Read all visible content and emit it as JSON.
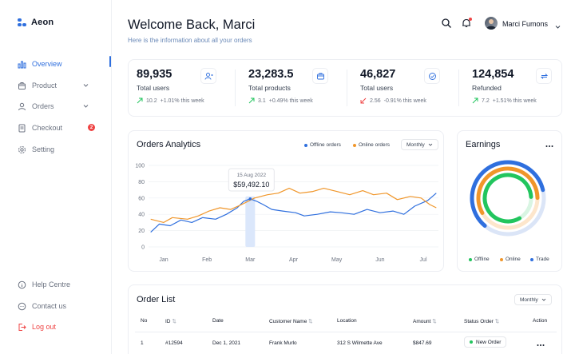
{
  "app": {
    "name": "Aeon"
  },
  "sidebar": {
    "items": [
      {
        "label": "Overview",
        "icon": "bar-chart-icon",
        "active": true
      },
      {
        "label": "Product",
        "icon": "box-icon"
      },
      {
        "label": "Orders",
        "icon": "user-icon"
      },
      {
        "label": "Checkout",
        "icon": "receipt-icon",
        "badge": "2"
      },
      {
        "label": "Setting",
        "icon": "gear-icon"
      }
    ],
    "footer": [
      {
        "label": "Help Centre",
        "icon": "info-icon"
      },
      {
        "label": "Contact us",
        "icon": "chat-icon"
      },
      {
        "label": "Log out",
        "icon": "logout-icon"
      }
    ]
  },
  "header": {
    "title": "Welcome Back, Marci",
    "subtitle": "Here is the information about all your orders",
    "user_name": "Marci Fumons"
  },
  "stats": [
    {
      "value": "89,935",
      "label": "Total users",
      "trend_value": "10.2",
      "trend_text": "+1.01% this week",
      "direction": "up",
      "icon": "users-icon"
    },
    {
      "value": "23,283.5",
      "label": "Total products",
      "trend_value": "3.1",
      "trend_text": "+0.49% this week",
      "direction": "up",
      "icon": "box-icon"
    },
    {
      "value": "46,827",
      "label": "Total users",
      "trend_value": "2.56",
      "trend_text": "-0.91% this week",
      "direction": "down",
      "icon": "check-circle-icon"
    },
    {
      "value": "124,854",
      "label": "Refunded",
      "trend_value": "7.2",
      "trend_text": "+1.51% this week",
      "direction": "up",
      "icon": "refresh-icon"
    }
  ],
  "analytics": {
    "title": "Orders Analytics",
    "legend": [
      "Offline orders",
      "Online orders"
    ],
    "period": "Monthly",
    "tooltip_date": "15 Aug 2022",
    "tooltip_value": "$59,492.10"
  },
  "earnings": {
    "title": "Earnings",
    "legend": [
      "Offline",
      "Online",
      "Trade"
    ]
  },
  "order_list": {
    "title": "Order List",
    "period": "Monthly",
    "columns": [
      "No",
      "ID",
      "Date",
      "Customer Name",
      "Location",
      "Amount",
      "Status Order",
      "Action"
    ],
    "rows": [
      {
        "no": "1",
        "id": "#12594",
        "date": "Dec 1, 2021",
        "customer": "Frank Murlo",
        "location": "312 S Wilmette Ave",
        "amount": "$847.69",
        "status": "New Order"
      }
    ]
  },
  "colors": {
    "accent": "#2f6fde",
    "offline": "#2f6fde",
    "online": "#f0962a",
    "trade": "#22c55e",
    "up": "#22c55e",
    "down": "#ef4444"
  },
  "chart_data": {
    "type": "line",
    "xlabel": "",
    "ylabel": "",
    "x": [
      "Jan",
      "Feb",
      "Mar",
      "Apr",
      "May",
      "Jun",
      "Jul"
    ],
    "ylim": [
      0,
      100
    ],
    "yticks": [
      0,
      20,
      40,
      60,
      80,
      100
    ],
    "grid": true,
    "legend_position": "top-right",
    "series": [
      {
        "name": "Offline orders",
        "color": "#2f6fde",
        "points": [
          [
            0.0,
            18
          ],
          [
            0.2,
            28
          ],
          [
            0.45,
            26
          ],
          [
            0.7,
            33
          ],
          [
            0.95,
            30
          ],
          [
            1.2,
            36
          ],
          [
            1.5,
            34
          ],
          [
            1.75,
            40
          ],
          [
            2.0,
            48
          ],
          [
            2.15,
            56
          ],
          [
            2.3,
            59
          ],
          [
            2.45,
            56
          ],
          [
            2.6,
            52
          ],
          [
            2.8,
            46
          ],
          [
            3.05,
            44
          ],
          [
            3.35,
            42
          ],
          [
            3.55,
            38
          ],
          [
            3.85,
            40
          ],
          [
            4.15,
            43
          ],
          [
            4.4,
            42
          ],
          [
            4.7,
            40
          ],
          [
            5.0,
            46
          ],
          [
            5.3,
            42
          ],
          [
            5.6,
            44
          ],
          [
            5.85,
            40
          ],
          [
            6.1,
            50
          ],
          [
            6.4,
            57
          ],
          [
            6.6,
            66
          ]
        ]
      },
      {
        "name": "Online orders",
        "color": "#f0962a",
        "points": [
          [
            0.0,
            34
          ],
          [
            0.3,
            30
          ],
          [
            0.5,
            36
          ],
          [
            0.85,
            34
          ],
          [
            1.1,
            38
          ],
          [
            1.35,
            44
          ],
          [
            1.6,
            48
          ],
          [
            1.85,
            46
          ],
          [
            2.1,
            52
          ],
          [
            2.4,
            60
          ],
          [
            2.7,
            64
          ],
          [
            2.95,
            66
          ],
          [
            3.2,
            72
          ],
          [
            3.45,
            66
          ],
          [
            3.75,
            68
          ],
          [
            4.0,
            72
          ],
          [
            4.3,
            68
          ],
          [
            4.6,
            64
          ],
          [
            4.9,
            69
          ],
          [
            5.15,
            64
          ],
          [
            5.45,
            66
          ],
          [
            5.7,
            58
          ],
          [
            6.0,
            62
          ],
          [
            6.25,
            60
          ],
          [
            6.45,
            52
          ],
          [
            6.6,
            48
          ]
        ]
      }
    ],
    "highlight": {
      "x": 2.3,
      "date": "15 Aug 2022",
      "value": "$59,492.10"
    }
  }
}
